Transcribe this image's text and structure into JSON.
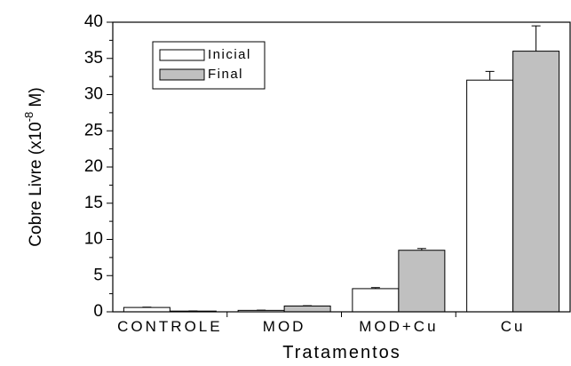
{
  "chart_data": {
    "type": "bar",
    "xlabel": "Tratamentos",
    "ylabel": {
      "text": "Cobre Livre (x10",
      "superscript": "-8",
      "suffix": " M)"
    },
    "categories": [
      "CONTROLE",
      "MOD",
      "MOD+Cu",
      "Cu"
    ],
    "series": [
      {
        "name": "Inicial",
        "color": "#ffffff",
        "values": [
          0.6,
          0.2,
          3.2,
          32
        ],
        "errors": [
          0.05,
          0.03,
          0.15,
          1.2
        ]
      },
      {
        "name": "Final",
        "color": "#c0c0c0",
        "values": [
          0.1,
          0.8,
          8.5,
          36
        ],
        "errors": [
          0.02,
          0.05,
          0.25,
          3.5
        ]
      }
    ],
    "ylim": [
      0,
      40
    ],
    "yticks": [
      0,
      5,
      10,
      15,
      20,
      25,
      30,
      35,
      40
    ],
    "minor_yticks": [
      2.5,
      7.5,
      12.5,
      17.5,
      22.5,
      27.5,
      32.5,
      37.5
    ],
    "legend": "upper left"
  }
}
